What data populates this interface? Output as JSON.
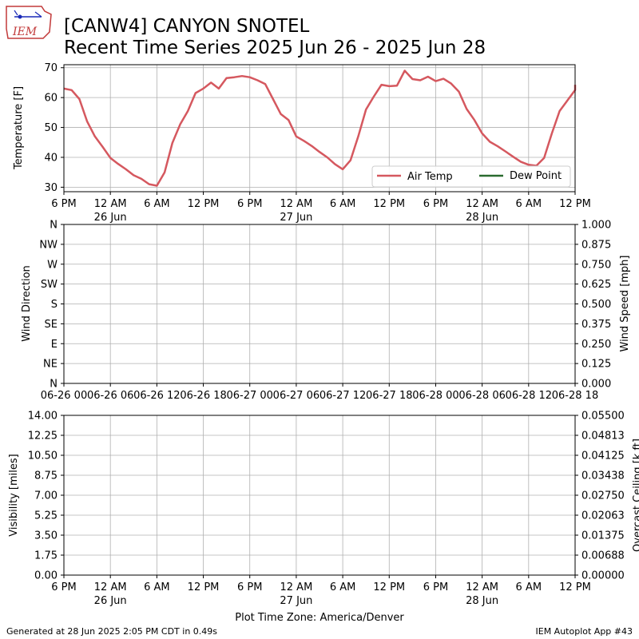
{
  "header": {
    "logo_text": "IEM",
    "title_line1": "[CANW4] CANYON SNOTEL",
    "title_line2": "Recent Time Series 2025 Jun 26 - 2025 Jun 28"
  },
  "footer": {
    "left": "Generated at 28 Jun 2025 2:05 PM CDT in 0.49s",
    "right": "IEM Autoplot App #43",
    "timezone": "Plot Time Zone: America/Denver"
  },
  "colors": {
    "air_temp": "#d5585f",
    "dew_point": "#2a6a2f",
    "ceiling_axis": "#008000",
    "grid": "#b0b0b0"
  },
  "time_ticks": [
    {
      "label": "6 PM",
      "sub": ""
    },
    {
      "label": "12 AM",
      "sub": "26 Jun"
    },
    {
      "label": "6 AM",
      "sub": ""
    },
    {
      "label": "12 PM",
      "sub": ""
    },
    {
      "label": "6 PM",
      "sub": ""
    },
    {
      "label": "12 AM",
      "sub": "27 Jun"
    },
    {
      "label": "6 AM",
      "sub": ""
    },
    {
      "label": "12 PM",
      "sub": ""
    },
    {
      "label": "6 PM",
      "sub": ""
    },
    {
      "label": "12 AM",
      "sub": "28 Jun"
    },
    {
      "label": "6 AM",
      "sub": ""
    },
    {
      "label": "12 PM",
      "sub": ""
    }
  ],
  "chart_data": [
    {
      "type": "line",
      "ylabel": "Temperature [F]",
      "ylim": [
        28.5,
        71
      ],
      "yticks": [
        "30",
        "40",
        "50",
        "60",
        "70"
      ],
      "grid": true,
      "legend": "lower-right",
      "series": [
        {
          "name": "Air Temp",
          "x_hours_from_start": [
            0,
            1,
            2,
            3,
            4,
            5,
            6,
            7,
            8,
            9,
            10,
            11,
            12,
            13,
            14,
            15,
            16,
            17,
            18,
            19,
            20,
            21,
            22,
            23,
            24,
            25,
            26,
            27,
            28,
            29,
            30,
            31,
            32,
            33,
            34,
            35,
            36,
            37,
            38,
            39,
            40,
            41,
            42,
            43,
            44,
            45,
            46,
            47,
            48,
            49,
            50,
            51,
            52,
            53,
            54,
            55,
            56,
            57,
            58,
            59,
            60,
            61,
            62,
            63,
            64,
            65,
            66
          ],
          "values": [
            63,
            62.5,
            59.5,
            52,
            47,
            43.5,
            39.8,
            37.8,
            36,
            34,
            32.8,
            31,
            30.5,
            35,
            44.8,
            51,
            55.5,
            61.5,
            63,
            65,
            63,
            66.5,
            66.8,
            67.2,
            66.8,
            65.8,
            64.5,
            59.5,
            54.5,
            52.5,
            47,
            45.5,
            43.8,
            41.8,
            40,
            37.7,
            36,
            39,
            47,
            56,
            60.3,
            64.3,
            63.8,
            64,
            69,
            66.2,
            65.8,
            67,
            65.5,
            66.3,
            64.7,
            62,
            56.2,
            52.5,
            48,
            45.2,
            43.7,
            42,
            40.2,
            38.5,
            37.5,
            37.2,
            39.8,
            48,
            55.5,
            59,
            62.5
          ],
          "tail_value": 64.3
        },
        {
          "name": "Dew Point",
          "values": []
        }
      ]
    },
    {
      "type": "line",
      "ylabel": "Wind Direction",
      "y2label": "Wind Speed [mph]",
      "yticks": [
        "N",
        "NE",
        "E",
        "SE",
        "S",
        "SW",
        "W",
        "NW",
        "N"
      ],
      "y2ticks": [
        "0.000",
        "0.125",
        "0.250",
        "0.375",
        "0.500",
        "0.625",
        "0.750",
        "0.875",
        "1.000"
      ],
      "xticks": [
        "06-26 00",
        "06-26 06",
        "06-26 12",
        "06-26 18",
        "06-27 00",
        "06-27 06",
        "06-27 12",
        "06-27 18",
        "06-28 00",
        "06-28 06",
        "06-28 12",
        "06-28 18"
      ],
      "grid": true,
      "series": []
    },
    {
      "type": "line",
      "ylabel": "Visibility [miles]",
      "y2label": "Overcast Ceiling [k ft]",
      "yticks": [
        "0.00",
        "1.75",
        "3.50",
        "5.25",
        "7.00",
        "8.75",
        "10.50",
        "12.25",
        "14.00"
      ],
      "y2ticks": [
        "0.00000",
        "0.00688",
        "0.01375",
        "0.02063",
        "0.02750",
        "0.03438",
        "0.04125",
        "0.04813",
        "0.05500"
      ],
      "grid": true,
      "series": []
    }
  ]
}
